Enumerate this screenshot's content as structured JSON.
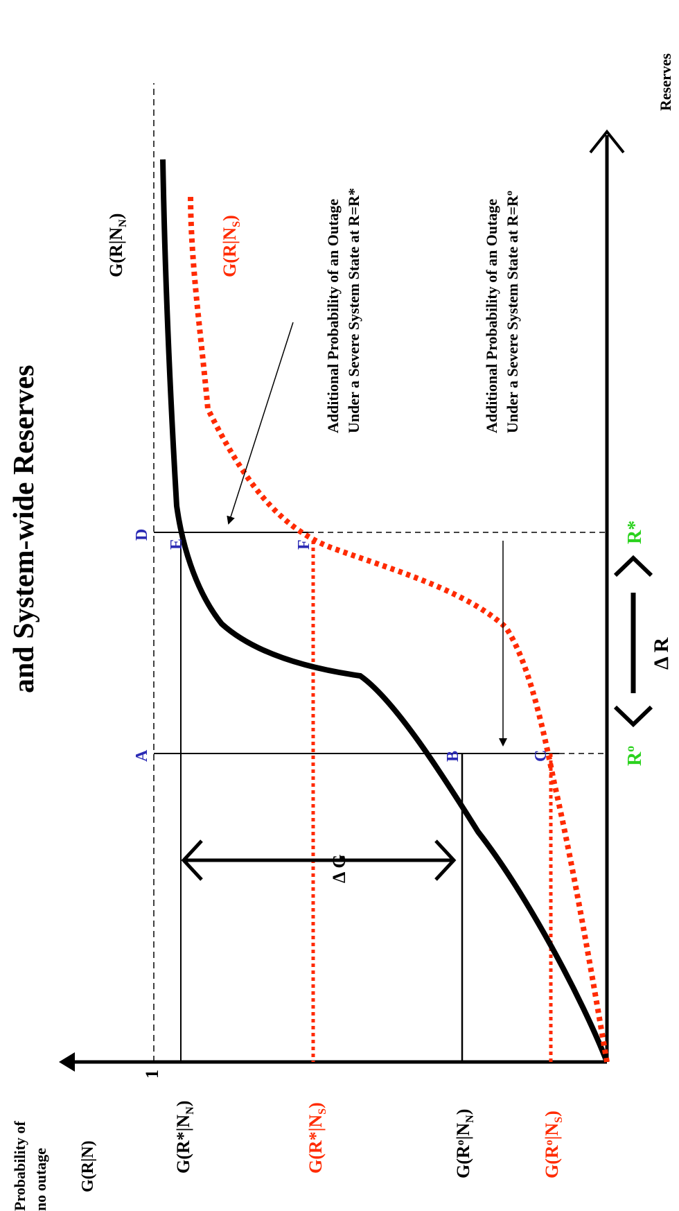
{
  "title": "and System-wide Reserves",
  "y_axis": {
    "label_line1": "Probability of",
    "label_line2": "no outage",
    "function_label": "G(R|N)",
    "tick_one": "1",
    "tick_gstar_n": "G(R*|NN)",
    "tick_gstar_s": "G(R*|NS)",
    "tick_go_n": "G(Ro|NN)",
    "tick_go_s": "G(Ro|NS)"
  },
  "x_axis": {
    "label": "Reserves",
    "tick_ro": "Ro",
    "tick_rstar": "R*",
    "delta_r": "Δ R"
  },
  "curves": {
    "normal_label": "G(R|NN)",
    "severe_label": "G(R|NS)",
    "normal_color": "#000000",
    "severe_color": "#ff2a00"
  },
  "points": [
    "A",
    "B",
    "C",
    "D",
    "E",
    "F"
  ],
  "points_color": "#2b2bb5",
  "reserve_color": "#2bd21e",
  "delta_g": "Δ G",
  "annotation_rstar": {
    "line1": "Additional Probability of an Outage",
    "line2": "Under a Severe System State at R=R*"
  },
  "annotation_ro": {
    "line1": "Additional Probability of an Outage",
    "line2": "Under a Severe System State at R=Ro"
  }
}
